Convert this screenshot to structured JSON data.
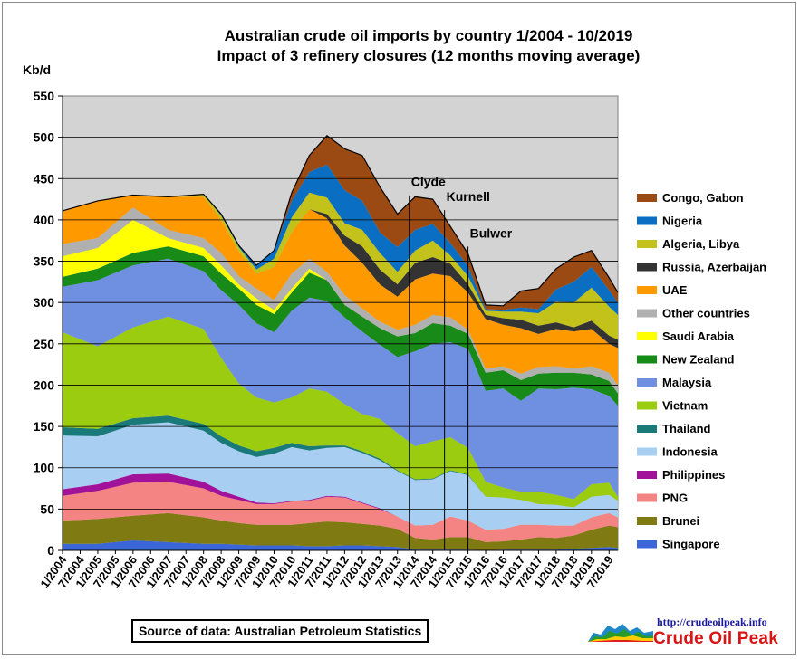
{
  "title": "Australian crude oil imports  by country 1/2004 - 10/2019",
  "subtitle": "Impact of 3 refinery closures (12 months moving average)",
  "source": "Source of data: Australian Petroleum Statistics",
  "logo": {
    "url": "http://crudeoilpeak.info",
    "name": "Crude Oil Peak"
  },
  "chart_data": {
    "type": "area",
    "stacked": true,
    "ylabel": "Kb/d",
    "ylim": [
      0,
      550
    ],
    "yticks": [
      0,
      50,
      100,
      150,
      200,
      250,
      300,
      350,
      400,
      450,
      500,
      550
    ],
    "grid": true,
    "legend_position": "right",
    "x_tick_labels": [
      "1/2004",
      "7/2004",
      "1/2005",
      "7/2005",
      "1/2006",
      "7/2006",
      "1/2007",
      "7/2007",
      "1/2008",
      "7/2008",
      "1/2009",
      "7/2009",
      "1/2010",
      "7/2010",
      "1/2011",
      "7/2011",
      "1/2012",
      "7/2012",
      "1/2013",
      "7/2013",
      "1/2014",
      "7/2014",
      "1/2015",
      "7/2015",
      "1/2016",
      "7/2016",
      "1/2017",
      "7/2017",
      "1/2018",
      "7/2018",
      "1/2019",
      "7/2019"
    ],
    "x": [
      "1/2004",
      "1/2005",
      "1/2006",
      "1/2007",
      "1/2008",
      "7/2008",
      "1/2009",
      "7/2009",
      "1/2010",
      "7/2010",
      "1/2011",
      "7/2011",
      "1/2012",
      "7/2012",
      "1/2013",
      "7/2013",
      "1/2014",
      "7/2014",
      "1/2015",
      "7/2015",
      "1/2016",
      "7/2016",
      "1/2017",
      "7/2017",
      "1/2018",
      "7/2018",
      "1/2019",
      "7/2019",
      "10/2019"
    ],
    "series": [
      {
        "name": "Singapore",
        "color": "#3a66d8",
        "values": [
          8,
          8,
          12,
          10,
          8,
          8,
          7,
          6,
          6,
          6,
          5,
          5,
          6,
          6,
          5,
          4,
          1,
          1,
          1,
          1,
          0,
          1,
          1,
          1,
          1,
          2,
          3,
          4,
          3
        ]
      },
      {
        "name": "Brunei",
        "color": "#7f7b12",
        "values": [
          28,
          30,
          30,
          35,
          32,
          28,
          26,
          25,
          25,
          25,
          28,
          30,
          28,
          26,
          25,
          22,
          14,
          12,
          15,
          15,
          10,
          10,
          12,
          15,
          14,
          16,
          22,
          26,
          25
        ]
      },
      {
        "name": "PNG",
        "color": "#f48383",
        "values": [
          30,
          34,
          40,
          38,
          35,
          30,
          28,
          25,
          25,
          28,
          27,
          30,
          30,
          25,
          20,
          15,
          15,
          18,
          25,
          20,
          15,
          15,
          18,
          15,
          15,
          12,
          15,
          15,
          12
        ]
      },
      {
        "name": "Philippines",
        "color": "#a2119a",
        "values": [
          8,
          8,
          10,
          10,
          8,
          6,
          4,
          2,
          1,
          1,
          1,
          1,
          1,
          1,
          1,
          0,
          0,
          0,
          0,
          0,
          0,
          0,
          0,
          0,
          0,
          0,
          0,
          0,
          0
        ]
      },
      {
        "name": "Indonesia",
        "color": "#a8cff2",
        "values": [
          65,
          58,
          60,
          62,
          62,
          58,
          55,
          55,
          60,
          65,
          60,
          58,
          60,
          60,
          58,
          55,
          55,
          55,
          55,
          55,
          40,
          38,
          30,
          25,
          25,
          22,
          25,
          22,
          20
        ]
      },
      {
        "name": "Thailand",
        "color": "#1a7a7a",
        "values": [
          10,
          9,
          8,
          8,
          8,
          8,
          7,
          7,
          7,
          5,
          5,
          3,
          2,
          2,
          2,
          1,
          1,
          1,
          1,
          1,
          0,
          0,
          0,
          0,
          0,
          0,
          0,
          0,
          0
        ]
      },
      {
        "name": "Vietnam",
        "color": "#9bcc10",
        "values": [
          115,
          100,
          110,
          120,
          115,
          95,
          75,
          65,
          55,
          55,
          70,
          65,
          50,
          45,
          48,
          45,
          40,
          45,
          40,
          32,
          18,
          12,
          10,
          15,
          12,
          10,
          15,
          15,
          5
        ]
      },
      {
        "name": "Malaysia",
        "color": "#6f8fe0",
        "values": [
          55,
          80,
          75,
          70,
          70,
          82,
          95,
          90,
          85,
          105,
          110,
          110,
          105,
          100,
          90,
          92,
          115,
          118,
          115,
          120,
          110,
          120,
          110,
          125,
          128,
          135,
          115,
          105,
          110
        ]
      },
      {
        "name": "New Zealand",
        "color": "#178a17",
        "values": [
          12,
          14,
          15,
          15,
          18,
          20,
          20,
          22,
          22,
          22,
          30,
          25,
          15,
          18,
          20,
          25,
          22,
          25,
          20,
          18,
          22,
          22,
          25,
          18,
          20,
          18,
          18,
          18,
          15
        ]
      },
      {
        "name": "Saudi Arabia",
        "color": "#ffff00",
        "values": [
          25,
          25,
          40,
          10,
          10,
          10,
          5,
          8,
          5,
          5,
          5,
          0,
          0,
          0,
          0,
          0,
          0,
          0,
          0,
          0,
          0,
          0,
          0,
          0,
          0,
          0,
          0,
          0,
          0
        ]
      },
      {
        "name": "Other countries",
        "color": "#b0b0b0",
        "values": [
          15,
          12,
          15,
          10,
          12,
          15,
          10,
          12,
          12,
          18,
          12,
          10,
          12,
          10,
          8,
          8,
          10,
          10,
          10,
          5,
          5,
          5,
          8,
          8,
          8,
          5,
          10,
          10,
          10
        ]
      },
      {
        "name": "UAE",
        "color": "#ff9900",
        "values": [
          40,
          45,
          15,
          40,
          50,
          40,
          30,
          18,
          40,
          50,
          60,
          65,
          60,
          55,
          45,
          40,
          55,
          50,
          50,
          45,
          60,
          50,
          55,
          40,
          45,
          45,
          45,
          35,
          45
        ]
      },
      {
        "name": "Russia, Azerbaijan",
        "color": "#333333",
        "values": [
          0,
          0,
          0,
          0,
          0,
          0,
          0,
          0,
          0,
          0,
          0,
          5,
          12,
          20,
          18,
          15,
          20,
          20,
          15,
          10,
          5,
          8,
          10,
          10,
          8,
          5,
          10,
          10,
          10
        ]
      },
      {
        "name": "Algeria, Libya",
        "color": "#c2c21a",
        "values": [
          0,
          0,
          0,
          0,
          3,
          5,
          5,
          5,
          10,
          18,
          20,
          20,
          15,
          20,
          20,
          15,
          15,
          20,
          10,
          10,
          5,
          8,
          10,
          15,
          25,
          30,
          40,
          35,
          30
        ]
      },
      {
        "name": "Nigeria",
        "color": "#0a6fc2",
        "values": [
          0,
          0,
          0,
          0,
          0,
          2,
          2,
          5,
          10,
          20,
          25,
          40,
          40,
          35,
          25,
          30,
          25,
          20,
          15,
          12,
          2,
          2,
          5,
          5,
          15,
          25,
          25,
          20,
          15
        ]
      },
      {
        "name": "Congo, Gabon",
        "color": "#9a4a12",
        "values": [
          0,
          0,
          0,
          0,
          0,
          0,
          0,
          0,
          0,
          10,
          20,
          35,
          50,
          55,
          55,
          40,
          40,
          30,
          20,
          15,
          5,
          5,
          20,
          25,
          25,
          30,
          20,
          15,
          12
        ]
      }
    ],
    "legend_order": [
      "Congo, Gabon",
      "Nigeria",
      "Algeria, Libya",
      "Russia, Azerbaijan",
      "UAE",
      "Other countries",
      "Saudi Arabia",
      "New Zealand",
      "Malaysia",
      "Vietnam",
      "Thailand",
      "Indonesia",
      "Philippines",
      "PNG",
      "Brunei",
      "Singapore"
    ],
    "annotations": [
      {
        "label": "Clyde",
        "x": "11/2013"
      },
      {
        "label": "Kurnell",
        "x": "11/2014"
      },
      {
        "label": "Bulwer",
        "x": "7/2015"
      }
    ]
  }
}
